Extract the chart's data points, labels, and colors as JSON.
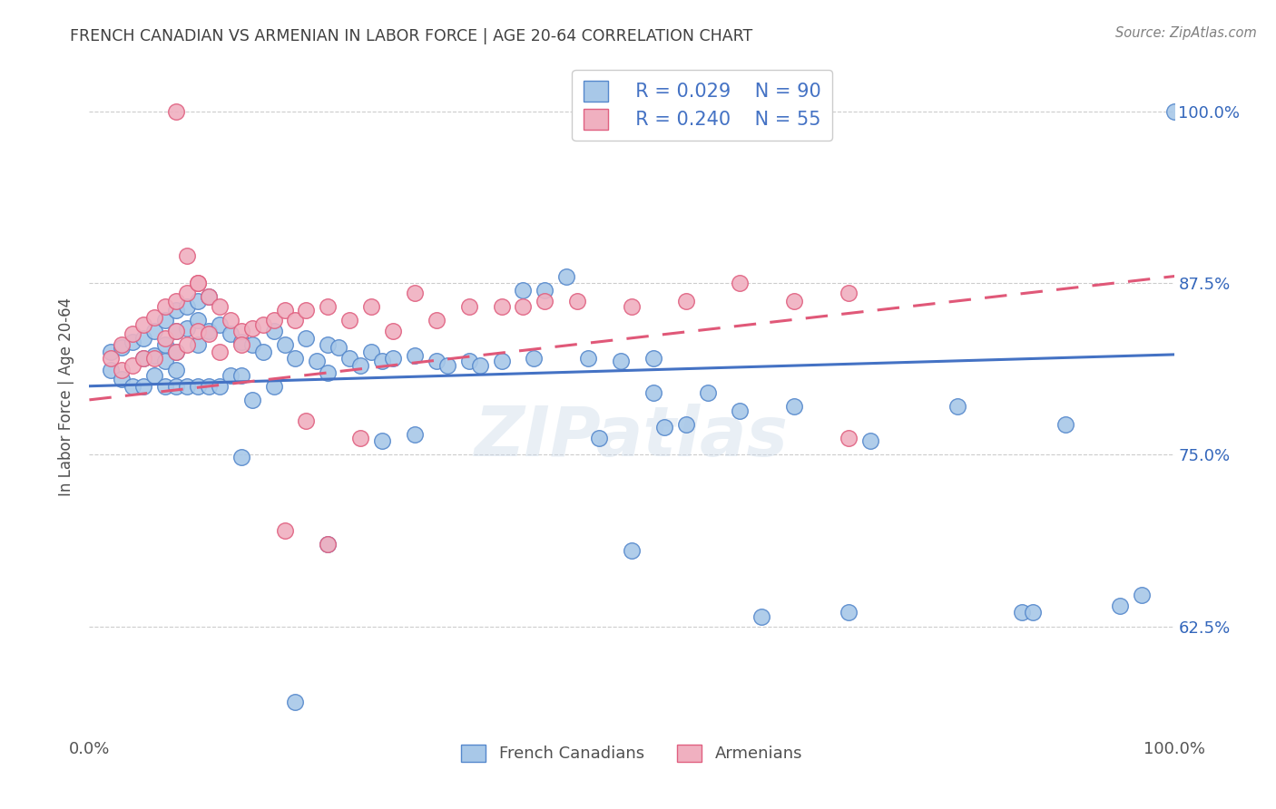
{
  "title": "FRENCH CANADIAN VS ARMENIAN IN LABOR FORCE | AGE 20-64 CORRELATION CHART",
  "source": "Source: ZipAtlas.com",
  "ylabel": "In Labor Force | Age 20-64",
  "xlim": [
    0.0,
    1.0
  ],
  "ylim": [
    0.545,
    1.04
  ],
  "yticks": [
    0.625,
    0.75,
    0.875,
    1.0
  ],
  "ytick_labels": [
    "62.5%",
    "75.0%",
    "87.5%",
    "100.0%"
  ],
  "xticks": [
    0.0,
    0.2,
    0.4,
    0.6,
    0.8,
    1.0
  ],
  "xtick_labels": [
    "0.0%",
    "",
    "",
    "",
    "",
    "100.0%"
  ],
  "legend_r1": "R = 0.029",
  "legend_n1": "N = 90",
  "legend_r2": "R = 0.240",
  "legend_n2": "N = 55",
  "blue_face_color": "#a8c8e8",
  "blue_edge_color": "#5588cc",
  "pink_face_color": "#f0b0c0",
  "pink_edge_color": "#e06080",
  "blue_line_color": "#4472c4",
  "pink_line_color": "#e05878",
  "right_label_color": "#3366bb",
  "title_color": "#404040",
  "source_color": "#808080",
  "watermark": "ZIPatlas",
  "blue_trend_x0": 0.0,
  "blue_trend_y0": 0.8,
  "blue_trend_x1": 1.0,
  "blue_trend_y1": 0.823,
  "pink_trend_x0": 0.0,
  "pink_trend_y0": 0.79,
  "pink_trend_x1": 1.0,
  "pink_trend_y1": 0.88,
  "french_x": [
    0.02,
    0.02,
    0.03,
    0.03,
    0.04,
    0.04,
    0.05,
    0.05,
    0.05,
    0.06,
    0.06,
    0.06,
    0.07,
    0.07,
    0.07,
    0.07,
    0.08,
    0.08,
    0.08,
    0.08,
    0.08,
    0.09,
    0.09,
    0.09,
    0.1,
    0.1,
    0.1,
    0.1,
    0.11,
    0.11,
    0.11,
    0.12,
    0.12,
    0.13,
    0.13,
    0.14,
    0.14,
    0.15,
    0.15,
    0.16,
    0.17,
    0.17,
    0.18,
    0.19,
    0.2,
    0.21,
    0.22,
    0.22,
    0.23,
    0.24,
    0.25,
    0.26,
    0.27,
    0.28,
    0.3,
    0.32,
    0.33,
    0.35,
    0.36,
    0.38,
    0.4,
    0.41,
    0.42,
    0.44,
    0.46,
    0.47,
    0.49,
    0.5,
    0.52,
    0.52,
    0.53,
    0.55,
    0.57,
    0.6,
    0.62,
    0.65,
    0.7,
    0.72,
    0.8,
    0.86,
    0.87,
    0.9,
    0.95,
    0.97,
    1.0,
    0.27,
    0.3,
    0.22,
    0.19,
    0.14
  ],
  "french_y": [
    0.825,
    0.812,
    0.828,
    0.805,
    0.832,
    0.8,
    0.835,
    0.82,
    0.8,
    0.84,
    0.822,
    0.808,
    0.848,
    0.83,
    0.818,
    0.8,
    0.855,
    0.84,
    0.825,
    0.812,
    0.8,
    0.858,
    0.842,
    0.8,
    0.862,
    0.848,
    0.83,
    0.8,
    0.865,
    0.84,
    0.8,
    0.845,
    0.8,
    0.838,
    0.808,
    0.832,
    0.808,
    0.83,
    0.79,
    0.825,
    0.84,
    0.8,
    0.83,
    0.82,
    0.835,
    0.818,
    0.83,
    0.81,
    0.828,
    0.82,
    0.815,
    0.825,
    0.818,
    0.82,
    0.822,
    0.818,
    0.815,
    0.818,
    0.815,
    0.818,
    0.87,
    0.82,
    0.87,
    0.88,
    0.82,
    0.762,
    0.818,
    0.68,
    0.82,
    0.795,
    0.77,
    0.772,
    0.795,
    0.782,
    0.632,
    0.785,
    0.635,
    0.76,
    0.785,
    0.635,
    0.635,
    0.772,
    0.64,
    0.648,
    1.0,
    0.76,
    0.765,
    0.685,
    0.57,
    0.748
  ],
  "armenian_x": [
    0.02,
    0.03,
    0.03,
    0.04,
    0.04,
    0.05,
    0.05,
    0.06,
    0.06,
    0.07,
    0.07,
    0.08,
    0.08,
    0.08,
    0.09,
    0.09,
    0.1,
    0.1,
    0.11,
    0.11,
    0.12,
    0.12,
    0.13,
    0.14,
    0.15,
    0.16,
    0.17,
    0.18,
    0.19,
    0.2,
    0.22,
    0.24,
    0.26,
    0.28,
    0.3,
    0.32,
    0.35,
    0.38,
    0.4,
    0.42,
    0.45,
    0.5,
    0.55,
    0.6,
    0.65,
    0.7,
    0.2,
    0.25,
    0.08,
    0.09,
    0.1,
    0.14,
    0.18,
    0.22,
    0.7
  ],
  "armenian_y": [
    0.82,
    0.83,
    0.812,
    0.838,
    0.815,
    0.845,
    0.82,
    0.85,
    0.82,
    0.858,
    0.835,
    0.862,
    0.84,
    0.825,
    0.868,
    0.83,
    0.875,
    0.84,
    0.865,
    0.838,
    0.858,
    0.825,
    0.848,
    0.84,
    0.842,
    0.845,
    0.848,
    0.855,
    0.848,
    0.855,
    0.858,
    0.848,
    0.858,
    0.84,
    0.868,
    0.848,
    0.858,
    0.858,
    0.858,
    0.862,
    0.862,
    0.858,
    0.862,
    0.875,
    0.862,
    0.868,
    0.775,
    0.762,
    1.0,
    0.895,
    0.875,
    0.83,
    0.695,
    0.685,
    0.762
  ]
}
